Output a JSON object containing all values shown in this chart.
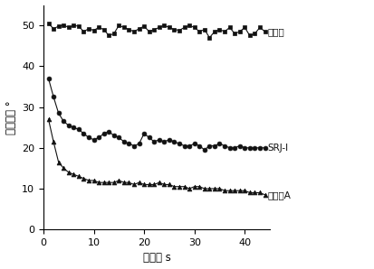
{
  "xlabel": "时间／ s",
  "ylabel": "接触角／ °",
  "xlim": [
    0,
    45
  ],
  "ylim": [
    0,
    55
  ],
  "xticks": [
    0,
    10,
    20,
    30,
    40
  ],
  "yticks": [
    0,
    10,
    20,
    30,
    40,
    50
  ],
  "pure_water": {
    "label": "纯净水",
    "color": "#111111",
    "marker": "s",
    "x": [
      1,
      2,
      3,
      4,
      5,
      6,
      7,
      8,
      9,
      10,
      11,
      12,
      13,
      14,
      15,
      16,
      17,
      18,
      19,
      20,
      21,
      22,
      23,
      24,
      25,
      26,
      27,
      28,
      29,
      30,
      31,
      32,
      33,
      34,
      35,
      36,
      37,
      38,
      39,
      40,
      41,
      42,
      43,
      44
    ],
    "y": [
      50.5,
      49.2,
      49.8,
      50.1,
      49.5,
      50.0,
      49.8,
      48.5,
      49.2,
      48.8,
      49.5,
      49.0,
      47.5,
      48.0,
      50.0,
      49.5,
      49.0,
      48.5,
      49.2,
      49.8,
      48.5,
      49.0,
      49.5,
      50.0,
      49.5,
      49.0,
      48.8,
      49.5,
      50.0,
      49.5,
      48.5,
      49.0,
      47.0,
      48.5,
      49.0,
      48.5,
      49.5,
      48.0,
      48.5,
      49.5,
      47.5,
      48.0,
      49.5,
      48.5
    ]
  },
  "srj": {
    "label": "SRJ-Ⅰ",
    "color": "#111111",
    "marker": "o",
    "x": [
      1,
      2,
      3,
      4,
      5,
      6,
      7,
      8,
      9,
      10,
      11,
      12,
      13,
      14,
      15,
      16,
      17,
      18,
      19,
      20,
      21,
      22,
      23,
      24,
      25,
      26,
      27,
      28,
      29,
      30,
      31,
      32,
      33,
      34,
      35,
      36,
      37,
      38,
      39,
      40,
      41,
      42,
      43,
      44
    ],
    "y": [
      37.0,
      32.5,
      28.5,
      26.5,
      25.5,
      25.0,
      24.5,
      23.5,
      22.5,
      22.0,
      22.5,
      23.5,
      24.0,
      23.0,
      22.5,
      21.5,
      21.0,
      20.5,
      21.0,
      23.5,
      22.5,
      21.5,
      22.0,
      21.5,
      22.0,
      21.5,
      21.0,
      20.5,
      20.5,
      21.0,
      20.5,
      19.5,
      20.5,
      20.5,
      21.0,
      20.5,
      20.0,
      20.0,
      20.5,
      20.0,
      20.0,
      20.0,
      20.0,
      20.0
    ]
  },
  "wetting_a": {
    "label": "湃润劑A",
    "color": "#111111",
    "marker": "^",
    "x": [
      1,
      2,
      3,
      4,
      5,
      6,
      7,
      8,
      9,
      10,
      11,
      12,
      13,
      14,
      15,
      16,
      17,
      18,
      19,
      20,
      21,
      22,
      23,
      24,
      25,
      26,
      27,
      28,
      29,
      30,
      31,
      32,
      33,
      34,
      35,
      36,
      37,
      38,
      39,
      40,
      41,
      42,
      43,
      44
    ],
    "y": [
      27.0,
      21.5,
      16.5,
      15.0,
      14.0,
      13.5,
      13.0,
      12.5,
      12.0,
      12.0,
      11.5,
      11.5,
      11.5,
      11.5,
      12.0,
      11.5,
      11.5,
      11.0,
      11.5,
      11.0,
      11.0,
      11.0,
      11.5,
      11.0,
      11.0,
      10.5,
      10.5,
      10.5,
      10.0,
      10.5,
      10.5,
      10.0,
      10.0,
      10.0,
      10.0,
      9.5,
      9.5,
      9.5,
      9.5,
      9.5,
      9.0,
      9.0,
      9.0,
      8.5
    ]
  }
}
